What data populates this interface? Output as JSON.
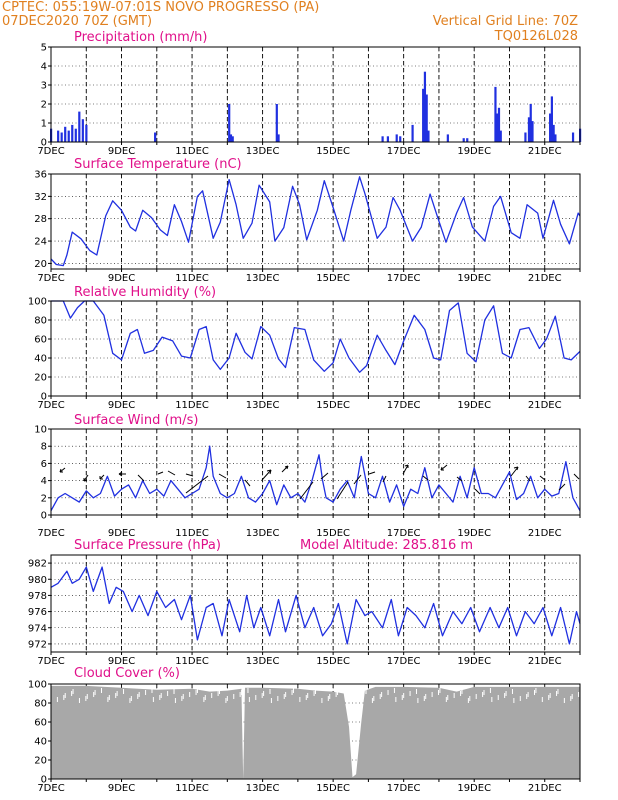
{
  "header": {
    "line1": "CPTEC:   055:19W-07:01S   NOVO PROGRESSO (PA)",
    "line2_left": "07DEC2020 70Z (GMT)",
    "line2_right": "Vertical Grid Line: 70Z",
    "line3_right": "TQ0126L028"
  },
  "colors": {
    "header": "#e08020",
    "panel_title": "#e0108a",
    "series": "#2030e0",
    "cloud": "#a8a8a8",
    "frame": "#000000"
  },
  "chart_data": [
    {
      "type": "bar",
      "title": "Precipitation (mm/h)",
      "x_start_day": 7,
      "x_end_day": 22,
      "xticks": [
        "7DEC",
        "9DEC",
        "11DEC",
        "13DEC",
        "15DEC",
        "17DEC",
        "19DEC",
        "21DEC"
      ],
      "ylim": [
        0,
        5
      ],
      "yticks": [
        0,
        1,
        2,
        3,
        4,
        5
      ],
      "grid": true,
      "x": [
        7.0,
        7.2,
        7.3,
        7.4,
        7.5,
        7.6,
        7.7,
        7.8,
        7.9,
        8.0,
        9.95,
        12.05,
        12.1,
        12.15,
        13.4,
        13.45,
        16.4,
        16.55,
        16.8,
        16.9,
        17.25,
        17.55,
        17.6,
        17.65,
        17.7,
        18.25,
        18.7,
        18.8,
        19.6,
        19.65,
        19.7,
        19.75,
        20.45,
        20.55,
        20.6,
        20.65,
        21.15,
        21.2,
        21.25,
        21.3,
        21.8,
        22.0
      ],
      "values": [
        0.7,
        0.6,
        0.5,
        0.8,
        0.6,
        0.9,
        0.7,
        1.6,
        1.2,
        0.9,
        0.5,
        2.0,
        0.4,
        0.3,
        2.0,
        0.4,
        0.3,
        0.3,
        0.4,
        0.3,
        0.9,
        2.8,
        3.7,
        2.5,
        0.6,
        0.4,
        0.2,
        0.2,
        2.9,
        1.5,
        1.8,
        0.6,
        0.5,
        1.3,
        2.0,
        1.1,
        1.5,
        2.4,
        0.9,
        0.4,
        0.5,
        0.7
      ]
    },
    {
      "type": "line",
      "title": "Surface Temperature (nC)",
      "xticks": [
        "7DEC",
        "9DEC",
        "11DEC",
        "13DEC",
        "15DEC",
        "17DEC",
        "19DEC",
        "21DEC"
      ],
      "ylim": [
        19,
        36
      ],
      "yticks": [
        20,
        24,
        28,
        32,
        36
      ],
      "grid": true,
      "x": [
        7.0,
        7.15,
        7.35,
        7.45,
        7.6,
        7.85,
        8.1,
        8.3,
        8.55,
        8.75,
        9.0,
        9.25,
        9.4,
        9.6,
        9.85,
        10.1,
        10.3,
        10.5,
        10.7,
        10.9,
        11.15,
        11.3,
        11.6,
        11.8,
        12.05,
        12.25,
        12.45,
        12.7,
        12.9,
        13.2,
        13.35,
        13.6,
        13.85,
        14.05,
        14.25,
        14.55,
        14.75,
        15.0,
        15.3,
        15.5,
        15.75,
        15.9,
        16.25,
        16.5,
        16.7,
        16.9,
        17.25,
        17.5,
        17.75,
        17.95,
        18.2,
        18.5,
        18.7,
        18.95,
        19.3,
        19.55,
        19.75,
        20.05,
        20.3,
        20.5,
        20.8,
        20.95,
        21.25,
        21.45,
        21.7,
        21.95,
        22.0
      ],
      "values": [
        20.8,
        19.8,
        19.6,
        21.5,
        25.6,
        24.4,
        22.3,
        21.5,
        28.5,
        31.2,
        29.5,
        26.5,
        25.8,
        29.5,
        28.2,
        26.0,
        25.0,
        30.5,
        27.5,
        23.8,
        32.0,
        33.0,
        24.5,
        27.4,
        35.0,
        30.5,
        24.5,
        27.2,
        34.0,
        31.0,
        24.0,
        26.4,
        33.8,
        30.5,
        24.2,
        29.5,
        34.8,
        30.0,
        24.0,
        29.5,
        35.5,
        32.5,
        24.5,
        26.5,
        31.8,
        29.5,
        24.0,
        26.5,
        32.4,
        28.5,
        23.8,
        29.0,
        31.8,
        26.5,
        24.0,
        30.2,
        32.0,
        25.5,
        24.5,
        30.5,
        29.0,
        24.5,
        31.3,
        27.0,
        23.5,
        29.0,
        28.5
      ]
    },
    {
      "type": "line",
      "title": "Relative Humidity (%)",
      "xticks": [
        "7DEC",
        "9DEC",
        "11DEC",
        "13DEC",
        "15DEC",
        "17DEC",
        "19DEC",
        "21DEC"
      ],
      "ylim": [
        0,
        100
      ],
      "yticks": [
        0,
        20,
        40,
        60,
        80,
        100
      ],
      "grid": true,
      "x": [
        7.0,
        7.35,
        7.55,
        7.75,
        7.95,
        8.2,
        8.5,
        8.75,
        9.0,
        9.25,
        9.45,
        9.65,
        9.9,
        10.15,
        10.45,
        10.7,
        10.95,
        11.2,
        11.4,
        11.6,
        11.8,
        12.05,
        12.25,
        12.5,
        12.7,
        12.95,
        13.2,
        13.45,
        13.65,
        13.9,
        14.2,
        14.45,
        14.75,
        15.0,
        15.2,
        15.45,
        15.75,
        15.95,
        16.25,
        16.5,
        16.75,
        17.0,
        17.3,
        17.6,
        17.85,
        18.05,
        18.3,
        18.55,
        18.8,
        19.05,
        19.3,
        19.55,
        19.8,
        20.05,
        20.3,
        20.55,
        20.85,
        21.05,
        21.3,
        21.55,
        21.75,
        22.0
      ],
      "values": [
        100,
        100,
        82,
        93,
        100,
        100,
        85,
        45,
        38,
        66,
        70,
        45,
        48,
        62,
        58,
        42,
        40,
        70,
        73,
        38,
        28,
        40,
        66,
        46,
        39,
        73,
        64,
        39,
        30,
        72,
        70,
        38,
        26,
        35,
        60,
        40,
        25,
        32,
        64,
        48,
        33,
        58,
        85,
        70,
        40,
        38,
        90,
        98,
        45,
        36,
        80,
        95,
        45,
        40,
        70,
        72,
        50,
        60,
        84,
        40,
        38,
        47
      ]
    },
    {
      "type": "line",
      "title": "Surface Wind (m/s)",
      "xticks": [
        "7DEC",
        "9DEC",
        "11DEC",
        "13DEC",
        "15DEC",
        "17DEC",
        "19DEC",
        "21DEC"
      ],
      "ylim": [
        0,
        10
      ],
      "yticks": [
        0,
        2,
        4,
        6,
        8,
        10
      ],
      "grid": true,
      "x": [
        7.0,
        7.2,
        7.4,
        7.6,
        7.8,
        8.0,
        8.2,
        8.4,
        8.6,
        8.8,
        9.0,
        9.2,
        9.4,
        9.6,
        9.8,
        10.0,
        10.2,
        10.4,
        10.6,
        10.8,
        11.0,
        11.2,
        11.4,
        11.5,
        11.6,
        11.8,
        12.0,
        12.2,
        12.4,
        12.6,
        12.8,
        13.0,
        13.2,
        13.4,
        13.6,
        13.8,
        14.0,
        14.2,
        14.4,
        14.6,
        14.7,
        14.8,
        15.0,
        15.2,
        15.4,
        15.6,
        15.8,
        16.0,
        16.2,
        16.4,
        16.6,
        16.8,
        17.0,
        17.2,
        17.4,
        17.6,
        17.8,
        18.0,
        18.2,
        18.4,
        18.6,
        18.8,
        19.0,
        19.2,
        19.4,
        19.6,
        19.8,
        20.0,
        20.2,
        20.4,
        20.6,
        20.8,
        21.0,
        21.2,
        21.4,
        21.6,
        21.8,
        22.0
      ],
      "values": [
        0.5,
        2.0,
        2.5,
        2.0,
        1.5,
        2.8,
        2.0,
        2.5,
        4.5,
        2.2,
        3.0,
        3.5,
        2.0,
        4.0,
        2.5,
        3.0,
        2.2,
        4.0,
        3.0,
        2.0,
        2.5,
        3.0,
        5.5,
        8.0,
        4.5,
        2.5,
        2.0,
        2.5,
        4.5,
        2.0,
        1.5,
        2.5,
        4.0,
        1.2,
        3.5,
        2.0,
        2.5,
        1.5,
        4.0,
        7.0,
        4.0,
        2.0,
        1.5,
        3.0,
        4.0,
        2.0,
        6.8,
        2.5,
        2.0,
        4.5,
        1.5,
        3.5,
        1.0,
        3.0,
        2.5,
        5.5,
        2.0,
        3.5,
        2.5,
        1.5,
        4.5,
        2.0,
        5.5,
        2.5,
        2.5,
        2.0,
        3.5,
        5.0,
        1.8,
        2.5,
        4.5,
        2.0,
        3.0,
        2.2,
        2.5,
        6.2,
        2.0,
        0.5
      ]
    },
    {
      "type": "line",
      "title": "Surface Pressure (hPa)",
      "annotation": "Model Altitude: 285.816 m",
      "xticks": [
        "7DEC",
        "9DEC",
        "11DEC",
        "13DEC",
        "15DEC",
        "17DEC",
        "19DEC",
        "21DEC"
      ],
      "ylim": [
        971,
        983
      ],
      "yticks": [
        972,
        974,
        976,
        978,
        980,
        982
      ],
      "grid": true,
      "x": [
        7.0,
        7.2,
        7.45,
        7.6,
        7.8,
        8.0,
        8.2,
        8.45,
        8.65,
        8.85,
        9.05,
        9.3,
        9.5,
        9.75,
        10.0,
        10.25,
        10.5,
        10.7,
        10.95,
        11.15,
        11.4,
        11.6,
        11.85,
        12.05,
        12.35,
        12.55,
        12.75,
        12.95,
        13.2,
        13.45,
        13.65,
        13.95,
        14.2,
        14.45,
        14.7,
        14.95,
        15.15,
        15.4,
        15.65,
        15.9,
        16.1,
        16.4,
        16.65,
        16.85,
        17.1,
        17.35,
        17.6,
        17.85,
        18.1,
        18.4,
        18.65,
        18.9,
        19.15,
        19.45,
        19.7,
        19.95,
        20.2,
        20.45,
        20.7,
        20.95,
        21.2,
        21.45,
        21.7,
        21.9,
        22.0
      ],
      "values": [
        979.0,
        979.5,
        981.0,
        979.5,
        980.0,
        981.5,
        978.5,
        981.5,
        977.0,
        979.0,
        978.5,
        976.0,
        978.0,
        975.5,
        978.5,
        976.5,
        977.5,
        975.0,
        978.0,
        972.5,
        976.5,
        977.0,
        973.0,
        977.5,
        973.5,
        978.0,
        974.0,
        976.5,
        973.0,
        977.5,
        973.5,
        978.0,
        974.0,
        976.5,
        973.0,
        974.5,
        977.0,
        972.0,
        977.5,
        975.5,
        976.0,
        974.0,
        977.5,
        973.0,
        976.5,
        975.5,
        974.0,
        977.0,
        973.0,
        976.0,
        974.5,
        976.5,
        973.5,
        976.5,
        974.0,
        976.5,
        973.0,
        976.0,
        974.5,
        976.5,
        973.0,
        976.5,
        972.0,
        976.0,
        974.5
      ]
    },
    {
      "type": "area",
      "title": "Cloud Cover (%)",
      "xticks": [
        "7DEC",
        "9DEC",
        "11DEC",
        "13DEC",
        "15DEC",
        "17DEC",
        "19DEC",
        "21DEC"
      ],
      "ylim": [
        0,
        100
      ],
      "yticks": [
        0,
        20,
        40,
        60,
        80,
        100
      ],
      "grid": true,
      "x": [
        7.0,
        8.0,
        9.0,
        10.0,
        11.0,
        11.5,
        12.0,
        12.4,
        12.45,
        12.5,
        13.0,
        14.0,
        14.5,
        15.0,
        15.3,
        15.45,
        15.55,
        15.65,
        15.8,
        15.9,
        16.2,
        17.0,
        18.0,
        18.5,
        19.0,
        20.0,
        21.0,
        22.0
      ],
      "values": [
        98,
        98,
        96,
        94,
        95,
        92,
        93,
        95,
        0,
        96,
        96,
        95,
        93,
        92,
        90,
        55,
        2,
        5,
        60,
        93,
        97,
        97,
        96,
        92,
        97,
        97,
        97,
        97
      ]
    }
  ]
}
